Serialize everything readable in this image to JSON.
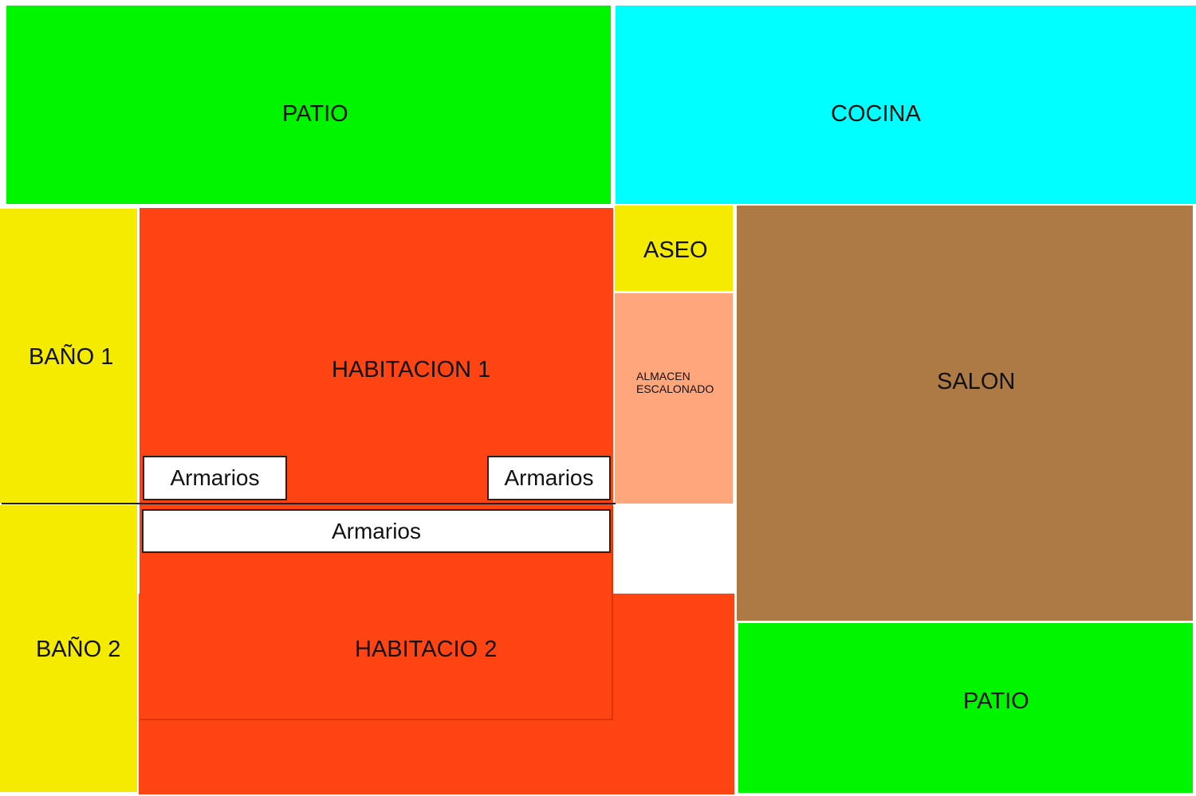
{
  "colors": {
    "patio": "#00F500",
    "cocina": "#00FFFF",
    "bano": "#F5EB00",
    "habitacion": "#FF4414",
    "aseo": "#F5EB00",
    "almacen": "#FFA67C",
    "salon": "#AD7A45",
    "armario": "#FFFFFF"
  },
  "rooms": {
    "patio_top": "PATIO",
    "cocina": "COCINA",
    "bano_1": "BAÑO 1",
    "habitacion_1": "HABITACION 1",
    "aseo": "ASEO",
    "almacen_line1": "ALMACEN",
    "almacen_line2": "ESCALONADO",
    "salon": "SALON",
    "bano_2": "BAÑO 2",
    "habitacion_2": "HABITACIO 2",
    "patio_bottom": "PATIO"
  },
  "armarios": {
    "left": "Armarios",
    "right": "Armarios",
    "center": "Armarios"
  }
}
